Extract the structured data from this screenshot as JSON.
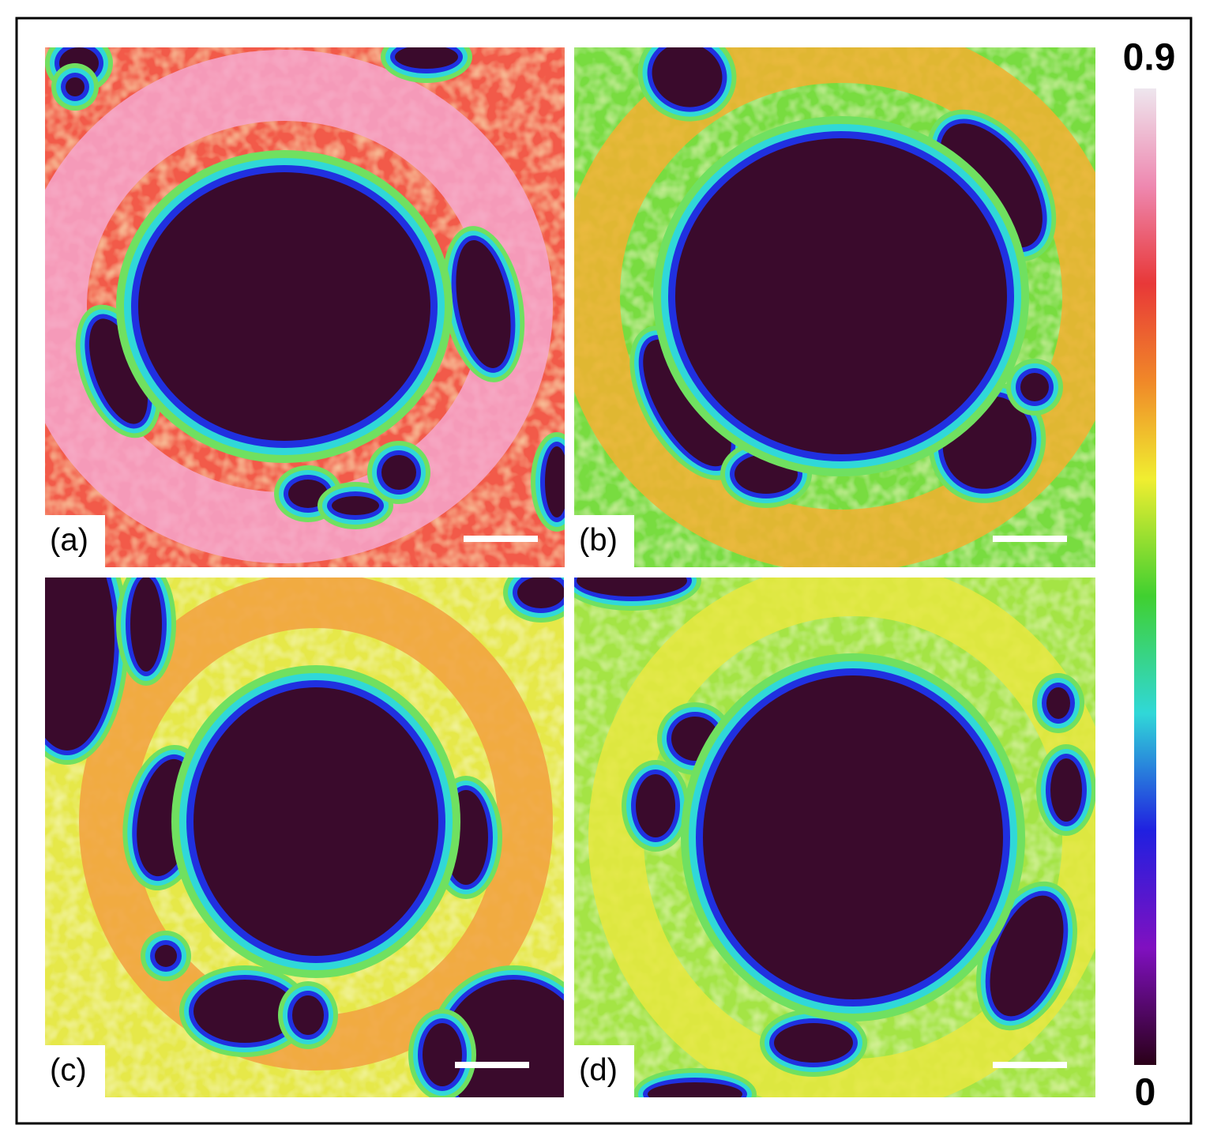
{
  "panels": [
    {
      "label": "(a)"
    },
    {
      "label": "(b)"
    },
    {
      "label": "(c)"
    },
    {
      "label": "(d)"
    }
  ],
  "colorbar": {
    "max": 0.9,
    "min": 0
  }
}
